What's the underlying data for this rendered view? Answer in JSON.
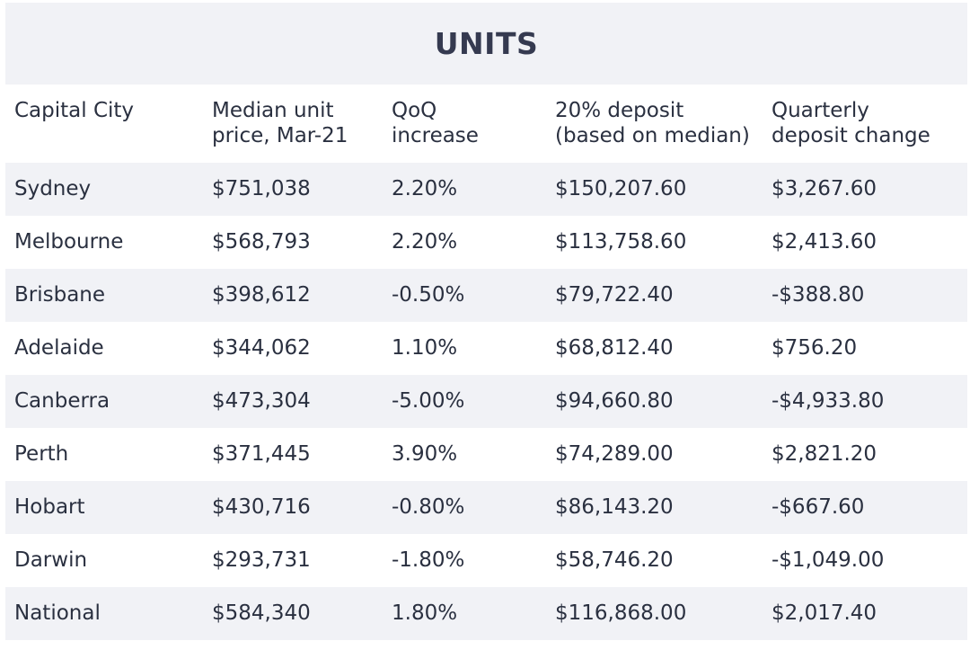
{
  "table": {
    "title": "UNITS",
    "headers": [
      [
        "Capital City"
      ],
      [
        "Median unit",
        "price, Mar-21"
      ],
      [
        "QoQ",
        "increase"
      ],
      [
        "20% deposit",
        "(based on median)"
      ],
      [
        "Quarterly",
        "deposit change"
      ]
    ],
    "rows": [
      [
        "Sydney",
        "$751,038",
        "2.20%",
        "$150,207.60",
        "$3,267.60"
      ],
      [
        "Melbourne",
        "$568,793",
        "2.20%",
        "$113,758.60",
        "$2,413.60"
      ],
      [
        "Brisbane",
        "$398,612",
        "-0.50%",
        "$79,722.40",
        "-$388.80"
      ],
      [
        "Adelaide",
        "$344,062",
        "1.10%",
        "$68,812.40",
        "$756.20"
      ],
      [
        "Canberra",
        "$473,304",
        "-5.00%",
        "$94,660.80",
        "-$4,933.80"
      ],
      [
        "Perth",
        "$371,445",
        "3.90%",
        "$74,289.00",
        "$2,821.20"
      ],
      [
        "Hobart",
        "$430,716",
        "-0.80%",
        "$86,143.20",
        "-$667.60"
      ],
      [
        "Darwin",
        "$293,731",
        "-1.80%",
        "$58,746.20",
        "-$1,049.00"
      ],
      [
        "National",
        "$584,340",
        "1.80%",
        "$116,868.00",
        "$2,017.40"
      ]
    ]
  },
  "colors": {
    "shaded_row": "#f1f2f6",
    "text": "#2a3040",
    "title_text": "#353a50"
  }
}
